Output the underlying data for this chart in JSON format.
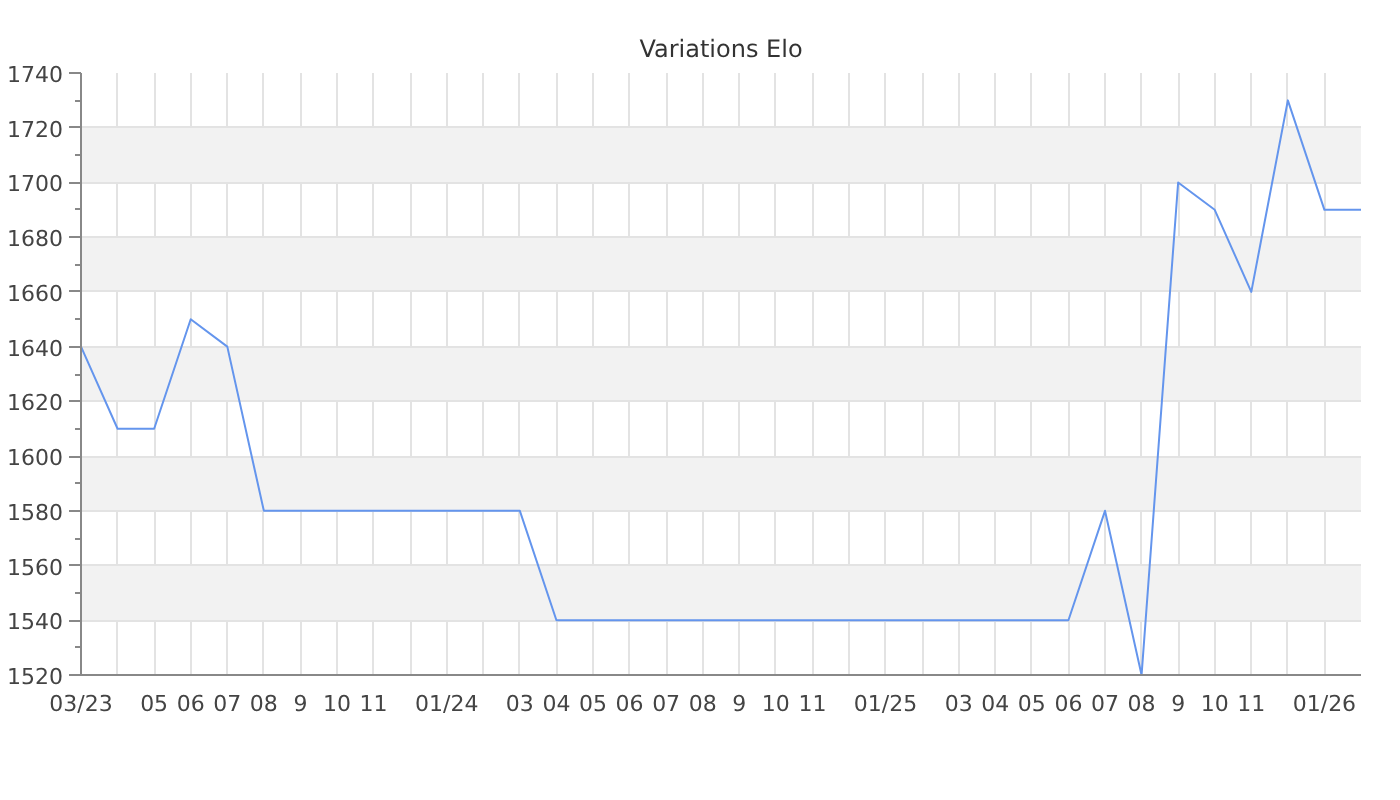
{
  "chart_data": {
    "type": "line",
    "title": "Variations Elo",
    "categories": [
      "03/23",
      null,
      "05",
      "06",
      "07",
      "08",
      "9",
      "10",
      "11",
      null,
      "01/24",
      null,
      "03",
      "04",
      "05",
      "06",
      "07",
      "08",
      "9",
      "10",
      "11",
      null,
      "01/25",
      null,
      "03",
      "04",
      "05",
      "06",
      "07",
      "08",
      "9",
      "10",
      "11",
      null,
      "01/26",
      null
    ],
    "series": [
      {
        "color": "#6495ed",
        "values": [
          1640,
          1610,
          1610,
          1650,
          1640,
          1580,
          1580,
          1580,
          1580,
          1580,
          1580,
          1580,
          1580,
          1540,
          1540,
          1540,
          1540,
          1540,
          1540,
          1540,
          1540,
          1540,
          1540,
          1540,
          1540,
          1540,
          1540,
          1540,
          1580,
          1520,
          1700,
          1690,
          1660,
          1730,
          1690,
          1690
        ]
      }
    ],
    "ylim": [
      1520,
      1740
    ],
    "yticks": [
      1520,
      1540,
      1560,
      1580,
      1600,
      1620,
      1640,
      1660,
      1680,
      1700,
      1720,
      1740
    ],
    "grid": true
  }
}
